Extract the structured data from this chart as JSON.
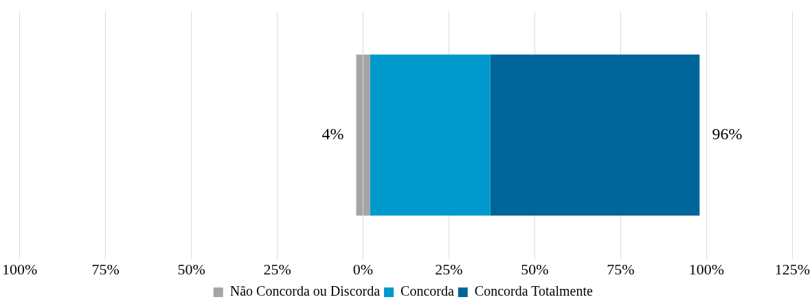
{
  "chart_data": {
    "type": "bar",
    "orientation": "horizontal",
    "stacked": true,
    "categories": [
      null
    ],
    "series": [
      {
        "color": "#a5a5a5",
        "values": [
          -2
        ]
      },
      {
        "name": "Não Concorda ou Discorda",
        "color": "#a5a5a5",
        "values": [
          2
        ]
      },
      {
        "name": "Concorda",
        "color": "#0099cc",
        "values": [
          35
        ]
      },
      {
        "name": "Concorda Totalmente",
        "color": "#006699",
        "values": [
          61
        ]
      }
    ],
    "xlim": [
      -100,
      125
    ],
    "xticks": [
      {
        "value": -100,
        "label": "100%"
      },
      {
        "value": -75,
        "label": "75%"
      },
      {
        "value": -50,
        "label": "50%"
      },
      {
        "value": -25,
        "label": "25%"
      },
      {
        "value": 0,
        "label": "0%"
      },
      {
        "value": 25,
        "label": "25%"
      },
      {
        "value": 50,
        "label": "50%"
      },
      {
        "value": 75,
        "label": "75%"
      },
      {
        "value": 100,
        "label": "100%"
      },
      {
        "value": 125,
        "label": "125%"
      }
    ],
    "grid": "x",
    "legend": "bottom",
    "annotations": [
      "4%",
      "96%"
    ]
  }
}
